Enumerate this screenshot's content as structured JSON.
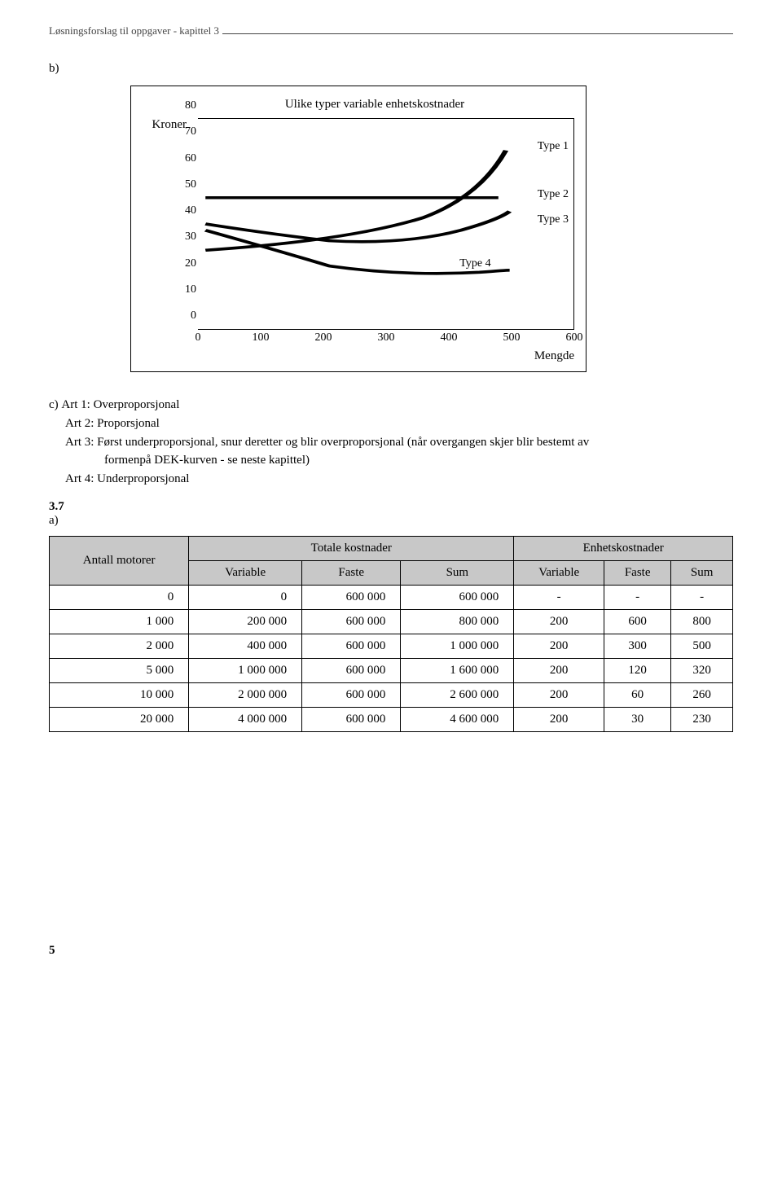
{
  "header": {
    "title": "Løsningsforslag til oppgaver - kapittel 3"
  },
  "section_b": {
    "label": "b)"
  },
  "chart": {
    "title": "Ulike typer variable enhetskostnader",
    "y_label": "Kroner",
    "x_label": "Mengde",
    "y_ticks": [
      "0",
      "10",
      "20",
      "30",
      "40",
      "50",
      "60",
      "70",
      "80"
    ],
    "x_ticks": [
      "0",
      "100",
      "200",
      "300",
      "400",
      "500",
      "600"
    ],
    "labels": {
      "type1": "Type 1",
      "type2": "Type 2",
      "type3": "Type 3",
      "type4": "Type 4"
    },
    "ylim": [
      0,
      80
    ],
    "xlim": [
      0,
      600
    ],
    "line_color": "#000000",
    "border_color": "#000000",
    "background": "#ffffff"
  },
  "section_c": {
    "lead": "c)",
    "art1": "Art 1:  Overproporsjonal",
    "art2": "Art 2:  Proporsjonal",
    "art3a": "Art 3:  Først underproporsjonal, snur deretter og blir overproporsjonal (når overgangen skjer blir bestemt av",
    "art3b": "formenpå DEK-kurven - se neste kapittel)",
    "art4": "Art 4:  Underproporsjonal"
  },
  "section_37": {
    "num": "3.7",
    "sub": "a)"
  },
  "table": {
    "h_antall": "Antall motorer",
    "h_totale": "Totale kostnader",
    "h_enhets": "Enhetskostnader",
    "h_var": "Variable",
    "h_faste": "Faste",
    "h_sum": "Sum",
    "rows": [
      {
        "n": "0",
        "tv": "0",
        "tf": "600 000",
        "ts": "600 000",
        "ev": "-",
        "ef": "-",
        "es": "-"
      },
      {
        "n": "1 000",
        "tv": "200 000",
        "tf": "600 000",
        "ts": "800 000",
        "ev": "200",
        "ef": "600",
        "es": "800"
      },
      {
        "n": "2 000",
        "tv": "400 000",
        "tf": "600 000",
        "ts": "1 000 000",
        "ev": "200",
        "ef": "300",
        "es": "500"
      },
      {
        "n": "5 000",
        "tv": "1 000 000",
        "tf": "600 000",
        "ts": "1 600 000",
        "ev": "200",
        "ef": "120",
        "es": "320"
      },
      {
        "n": "10 000",
        "tv": "2 000 000",
        "tf": "600 000",
        "ts": "2 600 000",
        "ev": "200",
        "ef": "60",
        "es": "260"
      },
      {
        "n": "20 000",
        "tv": "4 000 000",
        "tf": "600 000",
        "ts": "4 600 000",
        "ev": "200",
        "ef": "30",
        "es": "230"
      }
    ]
  },
  "page_number": "5"
}
